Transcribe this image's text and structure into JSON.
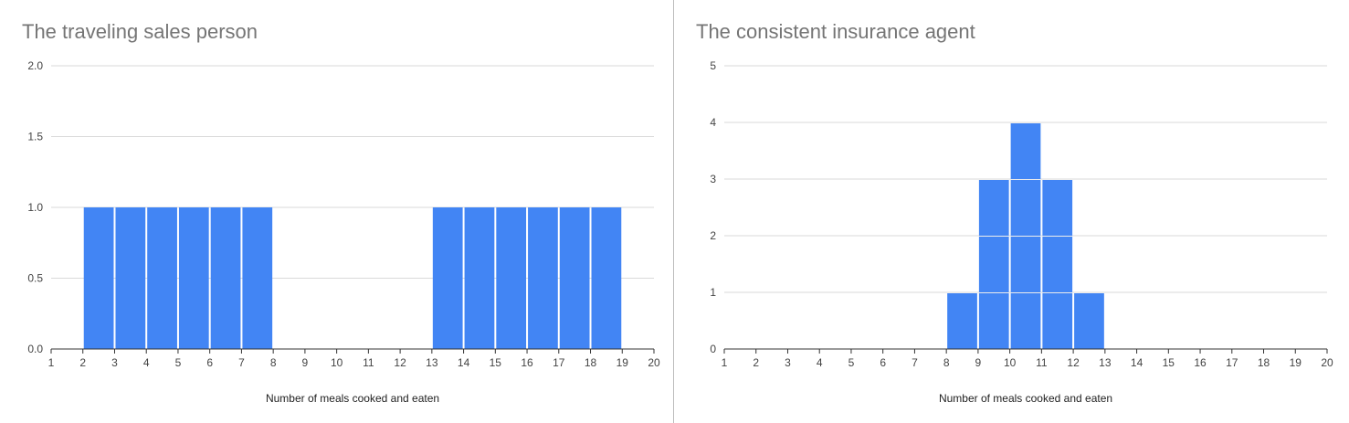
{
  "colors": {
    "bar": "#4285f4",
    "grid": "#d9d9d9",
    "axis": "#333333",
    "title": "#757575"
  },
  "chart_data": [
    {
      "type": "bar",
      "title": "The traveling sales person",
      "xlabel": "Number of meals cooked and eaten",
      "ylabel": "",
      "xlim": [
        1,
        20
      ],
      "ylim": [
        0,
        2
      ],
      "x_ticks": [
        "1",
        "2",
        "3",
        "4",
        "5",
        "6",
        "7",
        "8",
        "9",
        "10",
        "11",
        "12",
        "13",
        "14",
        "15",
        "16",
        "17",
        "18",
        "19",
        "20"
      ],
      "y_ticks": [
        "0.0",
        "0.5",
        "1.0",
        "1.5",
        "2.0"
      ],
      "bins": [
        {
          "start": 2,
          "end": 3,
          "value": 1
        },
        {
          "start": 3,
          "end": 4,
          "value": 1
        },
        {
          "start": 4,
          "end": 5,
          "value": 1
        },
        {
          "start": 5,
          "end": 6,
          "value": 1
        },
        {
          "start": 6,
          "end": 7,
          "value": 1
        },
        {
          "start": 7,
          "end": 8,
          "value": 1
        },
        {
          "start": 13,
          "end": 14,
          "value": 1
        },
        {
          "start": 14,
          "end": 15,
          "value": 1
        },
        {
          "start": 15,
          "end": 16,
          "value": 1
        },
        {
          "start": 16,
          "end": 17,
          "value": 1
        },
        {
          "start": 17,
          "end": 18,
          "value": 1
        },
        {
          "start": 18,
          "end": 19,
          "value": 1
        }
      ],
      "stacked_blocks": false,
      "grid": true,
      "legend": "none"
    },
    {
      "type": "bar",
      "title": "The consistent insurance agent",
      "xlabel": "Number of meals cooked and eaten",
      "ylabel": "",
      "xlim": [
        1,
        20
      ],
      "ylim": [
        0,
        5
      ],
      "x_ticks": [
        "1",
        "2",
        "3",
        "4",
        "5",
        "6",
        "7",
        "8",
        "9",
        "10",
        "11",
        "12",
        "13",
        "14",
        "15",
        "16",
        "17",
        "18",
        "19",
        "20"
      ],
      "y_ticks": [
        "0",
        "1",
        "2",
        "3",
        "4",
        "5"
      ],
      "bins": [
        {
          "start": 8,
          "end": 9,
          "value": 1
        },
        {
          "start": 9,
          "end": 10,
          "value": 3
        },
        {
          "start": 10,
          "end": 11,
          "value": 4
        },
        {
          "start": 11,
          "end": 12,
          "value": 3
        },
        {
          "start": 12,
          "end": 13,
          "value": 1
        }
      ],
      "stacked_blocks": true,
      "grid": true,
      "legend": "none"
    }
  ]
}
